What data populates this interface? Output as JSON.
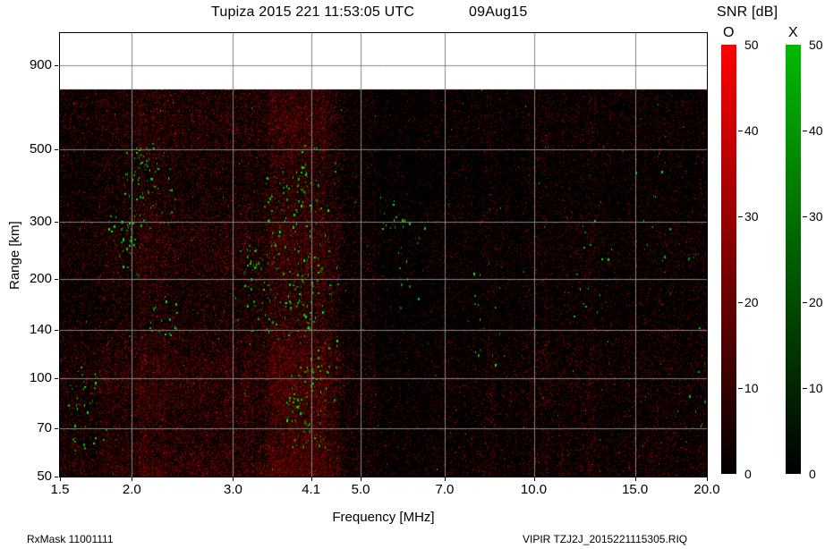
{
  "header": {
    "title": "Tupiza 2015 221 11:53:05 UTC",
    "date": "09Aug15"
  },
  "colorbar": {
    "title": "SNR [dB]",
    "o_label": "O",
    "x_label": "X",
    "o_color": "#ff0000",
    "x_color": "#00bb00",
    "min": 0,
    "max": 50,
    "ticks": [
      0,
      10,
      20,
      30,
      40,
      50
    ]
  },
  "footer": {
    "left": "RxMask 11001111",
    "right": "VIPIR  TZJ2J_2015221115305.RIQ"
  },
  "chart_data": {
    "type": "heatmap",
    "title": "Tupiza 2015 221 11:53:05 UTC 09Aug15",
    "xlabel": "Frequency [MHz]",
    "ylabel": "Range [km]",
    "x_scale": "log",
    "y_scale": "log",
    "x_range": [
      1.5,
      20.0
    ],
    "y_range": [
      50,
      1130
    ],
    "x_ticks": [
      "1.5",
      "2.0",
      "3.0",
      "4.1",
      "5.0",
      "7.0",
      "10.0",
      "15.0",
      "20.0"
    ],
    "y_ticks": [
      "900",
      "500",
      "300",
      "200",
      "140",
      "100",
      "70",
      "50"
    ],
    "grid": {
      "show": true,
      "color": "#858585",
      "x_lines": [
        2.0,
        3.0,
        4.1,
        5.0,
        7.0,
        10.0,
        15.0,
        20.0
      ],
      "y_lines": [
        70,
        100,
        140,
        200,
        300,
        500,
        900
      ]
    },
    "legend": {
      "O_mode_color": "red",
      "X_mode_color": "green"
    },
    "data_region": {
      "max_range_km": 760,
      "background": "#000000",
      "nodata_color": "#ffffff"
    },
    "description": "Ionogram SNR speckle: diffuse red O-mode noise across 1.5-20 MHz, densest from 2-4.6 MHz with a strong column near 3.5-4.3 MHz; very dark band 5.3-6.6 MHz; green X-mode echo clusters near 1.65, 1.95, 2.1, 3.2, 3.5 and 4.0 MHz between 60 and 520 km plus sparse green points elsewhere; white no-data region above ~760 km.",
    "noise": {
      "seed": 221,
      "red_base_density": 0.42,
      "red_bright_fraction": 0.05,
      "red_bands": [
        {
          "f0": 1.5,
          "f1": 1.75,
          "gain": 0.6
        },
        {
          "f0": 1.75,
          "f1": 2.0,
          "gain": 0.8
        },
        {
          "f0": 2.0,
          "f1": 3.3,
          "gain": 0.95
        },
        {
          "f0": 3.3,
          "f1": 4.6,
          "gain": 1.0
        },
        {
          "f0": 4.6,
          "f1": 5.3,
          "gain": 0.5
        },
        {
          "f0": 5.3,
          "f1": 6.6,
          "gain": 0.22
        },
        {
          "f0": 6.6,
          "f1": 9.5,
          "gain": 0.32
        },
        {
          "f0": 9.5,
          "f1": 13.0,
          "gain": 0.45
        },
        {
          "f0": 13.0,
          "f1": 20.0,
          "gain": 0.4
        }
      ],
      "red_columns": [
        {
          "f0": 3.45,
          "f1": 4.35,
          "gain": 1.7
        },
        {
          "f0": 2.05,
          "f1": 2.3,
          "gain": 1.25
        },
        {
          "f0": 8.2,
          "f1": 8.6,
          "gain": 1.5
        },
        {
          "f0": 7.0,
          "f1": 7.15,
          "gain": 1.4
        },
        {
          "f0": 10.3,
          "f1": 10.6,
          "gain": 1.3
        },
        {
          "f0": 12.4,
          "f1": 12.8,
          "gain": 1.3
        },
        {
          "f0": 16.2,
          "f1": 16.6,
          "gain": 1.25
        },
        {
          "f0": 19.2,
          "f1": 19.8,
          "gain": 1.3
        }
      ],
      "green_clusters": [
        {
          "f": 1.65,
          "df": 0.02,
          "km_lo": 60,
          "km_hi": 110,
          "count": 30
        },
        {
          "f": 1.95,
          "df": 0.015,
          "km_lo": 200,
          "km_hi": 330,
          "count": 30
        },
        {
          "f": 2.1,
          "df": 0.02,
          "km_lo": 280,
          "km_hi": 520,
          "count": 70
        },
        {
          "f": 2.25,
          "df": 0.015,
          "km_lo": 130,
          "km_hi": 180,
          "count": 18
        },
        {
          "f": 3.2,
          "df": 0.015,
          "km_lo": 150,
          "km_hi": 260,
          "count": 25
        },
        {
          "f": 3.5,
          "df": 0.02,
          "km_lo": 130,
          "km_hi": 430,
          "count": 60
        },
        {
          "f": 4.0,
          "df": 0.025,
          "km_lo": 60,
          "km_hi": 520,
          "count": 220
        },
        {
          "f": 5.9,
          "df": 0.02,
          "km_lo": 160,
          "km_hi": 360,
          "count": 25
        },
        {
          "f": 8.3,
          "df": 0.02,
          "km_lo": 100,
          "km_hi": 240,
          "count": 18
        },
        {
          "f": 12.5,
          "df": 0.02,
          "km_lo": 150,
          "km_hi": 310,
          "count": 16
        },
        {
          "f": 16.5,
          "df": 0.02,
          "km_lo": 220,
          "km_hi": 430,
          "count": 12
        },
        {
          "f": 19.5,
          "df": 0.015,
          "km_lo": 70,
          "km_hi": 150,
          "count": 10
        }
      ],
      "green_sparse_count": 120
    }
  }
}
